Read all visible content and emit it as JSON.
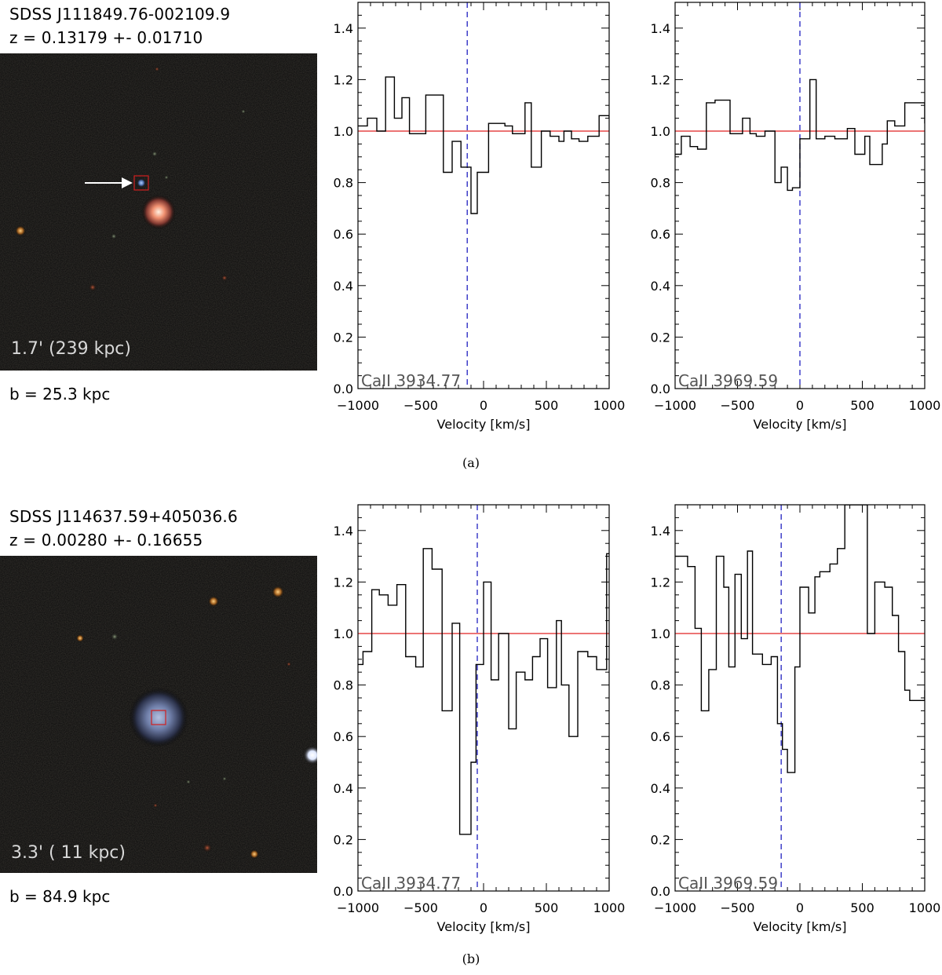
{
  "figure": {
    "ylim": [
      0.0,
      1.5
    ],
    "xlim": [
      -1000,
      1000
    ]
  },
  "panels": [
    {
      "id": "a",
      "caption": "(a)",
      "object_name": "SDSS J111849.76-002109.9",
      "redshift_text": "z = 0.13179 +- 0.01710",
      "image_scale_text": "1.7' (239 kpc)",
      "impact_text": "b = 25.3 kpc",
      "has_arrow": true
    },
    {
      "id": "b",
      "caption": "(b)",
      "object_name": "SDSS J114637.59+405036.6",
      "redshift_text": "z = 0.00280 +- 0.16655",
      "image_scale_text": "3.3' ( 11 kpc)",
      "impact_text": "b = 84.9 kpc",
      "has_arrow": false
    }
  ],
  "chart_data": [
    {
      "type": "line",
      "style": "step",
      "panel": "a",
      "label": "CaII 3934.77",
      "xlabel": "Velocity [km/s]",
      "ylabel": "",
      "xlim": [
        -1000,
        1000
      ],
      "ylim": [
        0.0,
        1.5
      ],
      "xticks": [
        -1000,
        -500,
        0,
        500,
        1000
      ],
      "yticks": [
        0.0,
        0.2,
        0.4,
        0.6,
        0.8,
        1.0,
        1.2,
        1.4
      ],
      "continuum": 1.0,
      "reference_velocity": -130,
      "series": [
        {
          "name": "flux",
          "x": [
            -1000,
            -925,
            -850,
            -780,
            -710,
            -650,
            -590,
            -460,
            -320,
            -250,
            -180,
            -100,
            -50,
            40,
            170,
            230,
            330,
            380,
            460,
            530,
            600,
            640,
            700,
            760,
            830,
            920,
            1000
          ],
          "values": [
            1.02,
            1.05,
            1.0,
            1.21,
            1.05,
            1.13,
            0.99,
            1.14,
            0.84,
            0.96,
            0.86,
            0.68,
            0.84,
            1.03,
            1.02,
            0.99,
            1.11,
            0.86,
            1.0,
            0.98,
            0.96,
            1.0,
            0.97,
            0.96,
            0.98,
            1.06,
            1.05
          ]
        }
      ]
    },
    {
      "type": "line",
      "style": "step",
      "panel": "a",
      "label": "CaII 3969.59",
      "xlabel": "Velocity [km/s]",
      "ylabel": "",
      "xlim": [
        -1000,
        1000
      ],
      "ylim": [
        0.0,
        1.5
      ],
      "xticks": [
        -1000,
        -500,
        0,
        500,
        1000
      ],
      "yticks": [
        0.0,
        0.2,
        0.4,
        0.6,
        0.8,
        1.0,
        1.2,
        1.4
      ],
      "continuum": 1.0,
      "reference_velocity": 0,
      "series": [
        {
          "name": "flux",
          "x": [
            -1000,
            -950,
            -880,
            -820,
            -750,
            -680,
            -560,
            -460,
            -400,
            -350,
            -280,
            -200,
            -150,
            -100,
            -60,
            0,
            80,
            130,
            200,
            280,
            380,
            440,
            520,
            560,
            660,
            700,
            760,
            840,
            900,
            1000
          ],
          "values": [
            0.91,
            0.98,
            0.94,
            0.93,
            1.11,
            1.12,
            0.99,
            1.05,
            0.99,
            0.98,
            1.0,
            0.8,
            0.86,
            0.77,
            0.78,
            0.97,
            1.2,
            0.97,
            0.98,
            0.97,
            1.01,
            0.91,
            0.98,
            0.87,
            0.95,
            1.04,
            1.02,
            1.11,
            1.11,
            1.03
          ]
        }
      ]
    },
    {
      "type": "line",
      "style": "step",
      "panel": "b",
      "label": "CaII 3934.77",
      "xlabel": "Velocity [km/s]",
      "ylabel": "",
      "xlim": [
        -1000,
        1000
      ],
      "ylim": [
        0.0,
        1.5
      ],
      "xticks": [
        -1000,
        -500,
        0,
        500,
        1000
      ],
      "yticks": [
        0.0,
        0.2,
        0.4,
        0.6,
        0.8,
        1.0,
        1.2,
        1.4
      ],
      "continuum": 1.0,
      "reference_velocity": -50,
      "series": [
        {
          "name": "flux",
          "x": [
            -1000,
            -960,
            -890,
            -830,
            -760,
            -690,
            -620,
            -540,
            -480,
            -410,
            -330,
            -250,
            -190,
            -100,
            -60,
            0,
            60,
            120,
            200,
            260,
            330,
            390,
            450,
            510,
            580,
            620,
            680,
            750,
            830,
            900,
            980
          ],
          "values": [
            0.88,
            0.93,
            1.17,
            1.15,
            1.11,
            1.19,
            0.91,
            0.87,
            1.33,
            1.25,
            0.7,
            1.04,
            0.22,
            0.5,
            0.88,
            1.2,
            0.82,
            1.0,
            0.63,
            0.85,
            0.82,
            0.91,
            0.98,
            0.79,
            1.05,
            0.8,
            0.6,
            0.93,
            0.91,
            0.86,
            1.31
          ]
        }
      ]
    },
    {
      "type": "line",
      "style": "step",
      "panel": "b",
      "label": "CaII 3969.59",
      "xlabel": "Velocity [km/s]",
      "ylabel": "",
      "xlim": [
        -1000,
        1000
      ],
      "ylim": [
        0.0,
        1.5
      ],
      "xticks": [
        -1000,
        -500,
        0,
        500,
        1000
      ],
      "yticks": [
        0.0,
        0.2,
        0.4,
        0.6,
        0.8,
        1.0,
        1.2,
        1.4
      ],
      "continuum": 1.0,
      "reference_velocity": -150,
      "series": [
        {
          "name": "flux",
          "x": [
            -1000,
            -900,
            -840,
            -790,
            -730,
            -670,
            -610,
            -570,
            -520,
            -470,
            -420,
            -380,
            -300,
            -230,
            -180,
            -140,
            -100,
            -40,
            0,
            70,
            120,
            160,
            240,
            300,
            360,
            420,
            480,
            540,
            600,
            680,
            740,
            790,
            840,
            880,
            950,
            1000
          ],
          "values": [
            1.3,
            1.26,
            1.02,
            0.7,
            0.86,
            1.3,
            1.18,
            0.87,
            1.23,
            0.98,
            1.32,
            0.92,
            0.88,
            0.91,
            0.65,
            0.55,
            0.46,
            0.87,
            1.18,
            1.08,
            1.22,
            1.24,
            1.27,
            1.33,
            1.5,
            1.5,
            1.5,
            1.0,
            1.2,
            1.18,
            1.07,
            0.93,
            0.78,
            0.74,
            0.74,
            0.78
          ]
        }
      ]
    }
  ]
}
